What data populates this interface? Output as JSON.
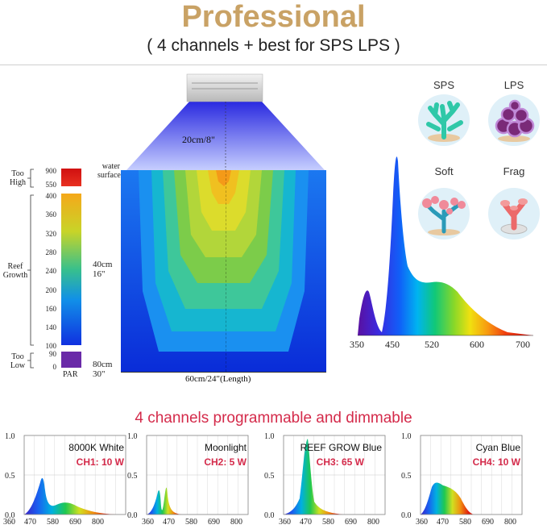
{
  "header": {
    "title": "Professional",
    "subtitle": "( 4 channels + best for SPS LPS )",
    "title_color": "#c9a265"
  },
  "tank": {
    "distance_label": "20cm/8\"",
    "water_surface": [
      "water",
      "surface"
    ],
    "depth_mid": [
      "40cm",
      "16\""
    ],
    "depth_bottom": [
      "80cm",
      "30\""
    ],
    "length_label": "60cm/24\"(Length)"
  },
  "par_scale": {
    "too_high": [
      "Too",
      "High"
    ],
    "reef_growth": [
      "Reef",
      "Growth"
    ],
    "too_low": [
      "Too",
      "Low"
    ],
    "par_label": "PAR",
    "high_ticks": [
      "900",
      "550"
    ],
    "growth_ticks": [
      "400",
      "360",
      "320",
      "280",
      "240",
      "200",
      "160",
      "140",
      "100"
    ],
    "low_ticks": [
      "90",
      "0"
    ]
  },
  "corals": [
    {
      "label": "SPS",
      "icon": "sps-coral-icon"
    },
    {
      "label": "LPS",
      "icon": "lps-coral-icon"
    },
    {
      "label": "Soft",
      "icon": "soft-coral-icon"
    },
    {
      "label": "Frag",
      "icon": "frag-coral-icon"
    }
  ],
  "spectrum": {
    "x_ticks": [
      "350",
      "450",
      "520",
      "600",
      "700"
    ]
  },
  "channels_title": "4 channels programmable and dimmable",
  "channels_title_color": "#d42a4a",
  "channels": [
    {
      "name": "8000K White",
      "channel": "CH1: 10 W"
    },
    {
      "name": "Moonlight",
      "channel": "CH2: 5 W"
    },
    {
      "name": "REEF GROW Blue",
      "channel": "CH3: 65 W"
    },
    {
      "name": "Cyan Blue",
      "channel": "CH4: 10 W"
    }
  ],
  "mini_axes": {
    "y_ticks": [
      "1.0",
      "0.5",
      "0.0"
    ],
    "x_ticks": [
      "360",
      "470",
      "580",
      "690",
      "800"
    ]
  }
}
